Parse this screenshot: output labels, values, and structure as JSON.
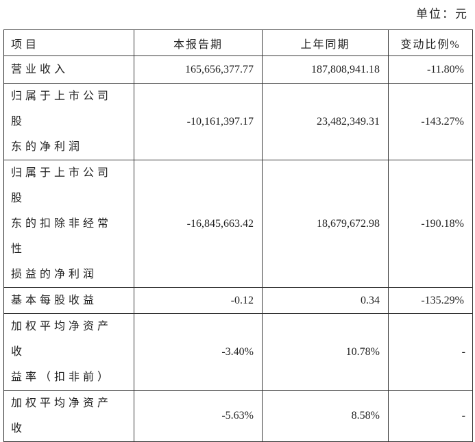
{
  "unit_label": "单位：元",
  "table": {
    "headers": [
      "项目",
      "本报告期",
      "上年同期",
      "变动比例%"
    ],
    "rows": [
      {
        "label": [
          "营业收入"
        ],
        "current": "165,656,377.77",
        "prior": "187,808,941.18",
        "change": "-11.80%"
      },
      {
        "label": [
          "归属于上市公司股",
          "东的净利润"
        ],
        "current": "-10,161,397.17",
        "prior": "23,482,349.31",
        "change": "-143.27%"
      },
      {
        "label": [
          "归属于上市公司股",
          "东的扣除非经常性",
          "损益的净利润"
        ],
        "current": "-16,845,663.42",
        "prior": "18,679,672.98",
        "change": "-190.18%"
      },
      {
        "label": [
          "基本每股收益"
        ],
        "current": "-0.12",
        "prior": "0.34",
        "change": "-135.29%"
      },
      {
        "label": [
          "加权平均净资产收",
          "益率（扣非前）"
        ],
        "current": "-3.40%",
        "prior": "10.78%",
        "change": "-"
      },
      {
        "label": [
          "加权平均净资产收"
        ],
        "current": "-5.63%",
        "prior": "8.58%",
        "change": "-"
      }
    ]
  }
}
